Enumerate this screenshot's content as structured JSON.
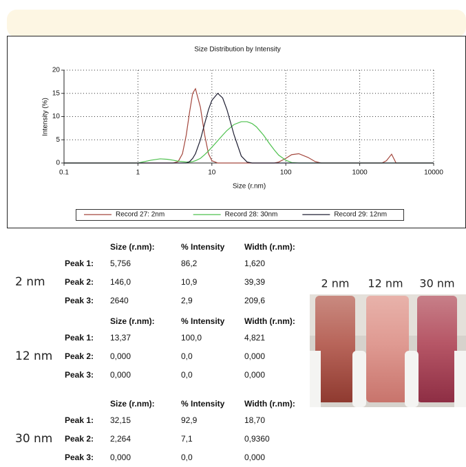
{
  "chart_data": {
    "type": "line",
    "title": "Size Distribution by Intensity",
    "x_label": "Size (r.nm)",
    "y_label": "Intensity (%)",
    "x": [
      0.1,
      1,
      1.5,
      2,
      2.5,
      3,
      3.5,
      4,
      4.5,
      5,
      5.5,
      6,
      7,
      8,
      9,
      10,
      12,
      14,
      16,
      20,
      25,
      30,
      35,
      40,
      50,
      60,
      70,
      80,
      100,
      120,
      150,
      200,
      250,
      300,
      1000,
      2000,
      2300,
      2700,
      3100,
      10000
    ],
    "xlim": [
      0.1,
      10000
    ],
    "xticks": [
      0.1,
      1,
      10,
      100,
      1000,
      10000
    ],
    "log_x": true,
    "ylim": [
      0,
      20
    ],
    "yticks": [
      0,
      5,
      10,
      15,
      20
    ],
    "grid": true,
    "legend": "bottom",
    "series": [
      {
        "name": "Record 27: 2nm",
        "color": "#a3463c",
        "values": [
          0,
          0,
          0,
          0,
          0,
          0,
          0.3,
          2,
          6,
          11,
          15,
          16,
          12,
          6,
          2,
          0.5,
          0,
          0,
          0,
          0,
          0,
          0,
          0,
          0,
          0,
          0,
          0,
          0.2,
          1,
          1.8,
          2,
          1.2,
          0.3,
          0,
          0,
          0,
          0.5,
          1.9,
          0,
          0
        ]
      },
      {
        "name": "Record 28: 30nm",
        "color": "#4cc04c",
        "values": [
          0,
          0,
          0.6,
          0.9,
          0.8,
          0.6,
          0.4,
          0.3,
          0.2,
          0.2,
          0.3,
          0.5,
          1,
          1.8,
          2.6,
          3.4,
          4.8,
          6,
          7,
          8.3,
          8.9,
          8.9,
          8.5,
          7.8,
          6,
          4.2,
          2.8,
          1.7,
          0.6,
          0.1,
          0,
          0,
          0,
          0,
          0,
          0,
          0,
          0,
          0,
          0
        ]
      },
      {
        "name": "Record 29: 12nm",
        "color": "#1c1c30",
        "values": [
          0,
          0,
          0,
          0,
          0,
          0,
          0,
          0,
          0,
          0.3,
          1,
          2,
          5,
          8.5,
          11.5,
          13.5,
          15,
          14,
          11.5,
          6,
          1.5,
          0.2,
          0,
          0,
          0,
          0,
          0,
          0,
          0,
          0,
          0,
          0,
          0,
          0,
          0,
          0,
          0,
          0,
          0,
          0
        ]
      }
    ]
  },
  "tables": [
    {
      "label": "2 nm",
      "headers": [
        "Size (r.nm):",
        "% Intensity",
        "Width (r.nm):"
      ],
      "rows": [
        [
          "Peak 1:",
          "5,756",
          "86,2",
          "1,620"
        ],
        [
          "Peak 2:",
          "146,0",
          "10,9",
          "39,39"
        ],
        [
          "Peak 3:",
          "2640",
          "2,9",
          "209,6"
        ]
      ]
    },
    {
      "label": "12 nm",
      "headers": [
        "Size (r.nm):",
        "% Intensity",
        "Width (r.nm):"
      ],
      "rows": [
        [
          "Peak 1:",
          "13,37",
          "100,0",
          "4,821"
        ],
        [
          "Peak 2:",
          "0,000",
          "0,0",
          "0,000"
        ],
        [
          "Peak 3:",
          "0,000",
          "0,0",
          "0,000"
        ]
      ]
    },
    {
      "label": "30 nm",
      "headers": [
        "Size (r.nm):",
        "% Intensity",
        "Width (r.nm):"
      ],
      "rows": [
        [
          "Peak 1:",
          "32,15",
          "92,9",
          "18,70"
        ],
        [
          "Peak 2:",
          "2,264",
          "7,1",
          "0,9360"
        ],
        [
          "Peak 3:",
          "0,000",
          "0,0",
          "0,000"
        ]
      ]
    }
  ],
  "photo_labels": [
    "2 nm",
    "12 nm",
    "30 nm"
  ]
}
